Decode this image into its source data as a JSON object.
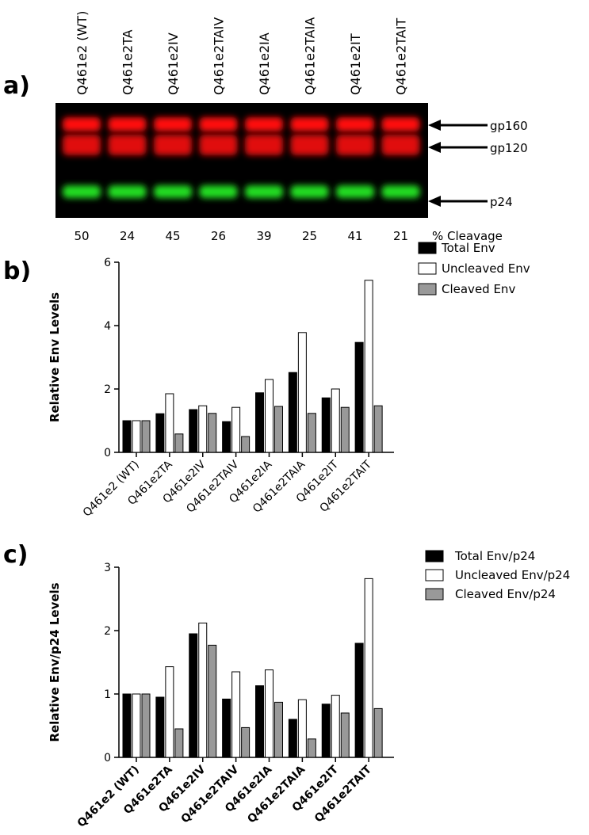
{
  "blot": {
    "label": "a)",
    "lanes": [
      "Q461e2 (WT)",
      "Q461e2TA",
      "Q461e2IV",
      "Q461e2TAIV",
      "Q461e2IA",
      "Q461e2TAIA",
      "Q461e2IT",
      "Q461e2TAIT"
    ],
    "bands": [
      "gp160",
      "gp120",
      "p24"
    ],
    "cleavage": [
      50,
      24,
      45,
      26,
      39,
      25,
      41,
      21
    ],
    "cleavage_label": "% Cleavage"
  },
  "chart_data": [
    {
      "type": "bar",
      "label": "b)",
      "y_label": "Relative Env Levels",
      "categories": [
        "Q461e2 (WT)",
        "Q461e2TA",
        "Q461e2IV",
        "Q461e2TAIV",
        "Q461e2IA",
        "Q461e2TAIA",
        "Q461e2IT",
        "Q461e2TAIT"
      ],
      "series": [
        {
          "name": "Total Env",
          "color": "#000000",
          "values": [
            1.0,
            1.22,
            1.35,
            0.97,
            1.88,
            2.52,
            1.72,
            3.47
          ]
        },
        {
          "name": "Uncleaved Env",
          "color": "#ffffff",
          "values": [
            1.0,
            1.85,
            1.47,
            1.42,
            2.3,
            3.78,
            2.0,
            5.43
          ]
        },
        {
          "name": "Cleaved Env",
          "color": "#999999",
          "values": [
            1.0,
            0.58,
            1.23,
            0.5,
            1.45,
            1.23,
            1.42,
            1.47
          ]
        }
      ],
      "ylim": [
        0,
        6
      ],
      "yticks": [
        0,
        2,
        4,
        6
      ]
    },
    {
      "type": "bar",
      "label": "c)",
      "y_label": "Relative Env/p24 Levels",
      "categories": [
        "Q461e2 (WT)",
        "Q461e2TA",
        "Q461e2IV",
        "Q461e2TAIV",
        "Q461e2IA",
        "Q461e2TAIA",
        "Q461e2IT",
        "Q461e2TAIT"
      ],
      "series": [
        {
          "name": "Total Env/p24",
          "color": "#000000",
          "values": [
            1.0,
            0.95,
            1.95,
            0.92,
            1.13,
            0.6,
            0.84,
            1.8
          ]
        },
        {
          "name": "Uncleaved Env/p24",
          "color": "#ffffff",
          "values": [
            1.0,
            1.43,
            2.12,
            1.35,
            1.38,
            0.91,
            0.98,
            2.82
          ]
        },
        {
          "name": "Cleaved Env/p24",
          "color": "#999999",
          "values": [
            1.0,
            0.45,
            1.77,
            0.47,
            0.87,
            0.29,
            0.7,
            0.77
          ]
        }
      ],
      "ylim": [
        0,
        3
      ],
      "yticks": [
        0,
        1,
        2,
        3
      ]
    }
  ]
}
